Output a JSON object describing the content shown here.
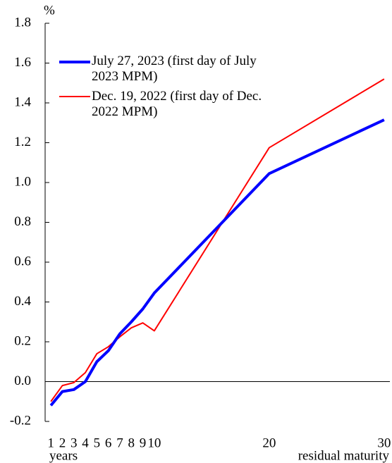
{
  "chart_data": {
    "type": "line",
    "ylabel": "%",
    "xlabel": "residual maturity",
    "x_unit": "years",
    "x": [
      1,
      2,
      3,
      4,
      5,
      6,
      7,
      8,
      9,
      10,
      20,
      30
    ],
    "series": [
      {
        "name": "July 27, 2023 (first day of July 2023 MPM)",
        "color": "#0000ff",
        "width": 4,
        "values": [
          -0.12,
          -0.05,
          -0.04,
          0.0,
          0.1,
          0.155,
          0.24,
          0.3,
          0.365,
          0.445,
          1.045,
          1.315
        ]
      },
      {
        "name": "Dec. 19, 2022 (first day of Dec. 2022 MPM)",
        "color": "#ff0000",
        "width": 2,
        "values": [
          -0.1,
          -0.02,
          -0.005,
          0.045,
          0.14,
          0.175,
          0.225,
          0.27,
          0.295,
          0.255,
          1.175,
          1.52
        ]
      }
    ],
    "xlim": [
      0.5,
      30.5
    ],
    "xticks": [
      1,
      2,
      3,
      4,
      5,
      6,
      7,
      8,
      9,
      10,
      20,
      30
    ],
    "ylim": [
      -0.2,
      1.8
    ],
    "yticks": [
      -0.2,
      {
        "value": 0,
        "label": "0.0"
      },
      0.2,
      0.4,
      0.6,
      0.8,
      {
        "value": 1,
        "label": "1.0"
      },
      1.2,
      1.4,
      1.6,
      1.8
    ],
    "grid": false,
    "zero_line": true,
    "legend": "top-left"
  }
}
